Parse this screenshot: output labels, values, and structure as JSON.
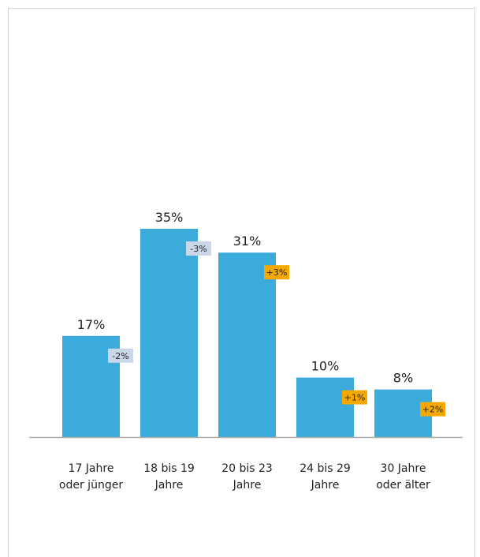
{
  "chart_data": {
    "type": "bar",
    "categories": [
      [
        "17 Jahre",
        "oder jünger"
      ],
      [
        "18 bis 19",
        "Jahre"
      ],
      [
        "20 bis 23",
        "Jahre"
      ],
      [
        "24 bis 29",
        "Jahre"
      ],
      [
        "30 Jahre",
        "oder älter"
      ]
    ],
    "values": [
      17,
      35,
      31,
      10,
      8
    ],
    "value_labels": [
      "17%",
      "35%",
      "31%",
      "10%",
      "8%"
    ],
    "changes": [
      "-2%",
      "-3%",
      "+3%",
      "+1%",
      "+2%"
    ],
    "change_directions": [
      "down",
      "down",
      "up",
      "up",
      "up"
    ],
    "ylim": [
      0,
      35
    ],
    "grid": false,
    "colors": {
      "bar": "#3aabdb",
      "change_up": "#f5a800",
      "change_down": "#c9d7e8",
      "axis": "#aaaaaa"
    }
  }
}
